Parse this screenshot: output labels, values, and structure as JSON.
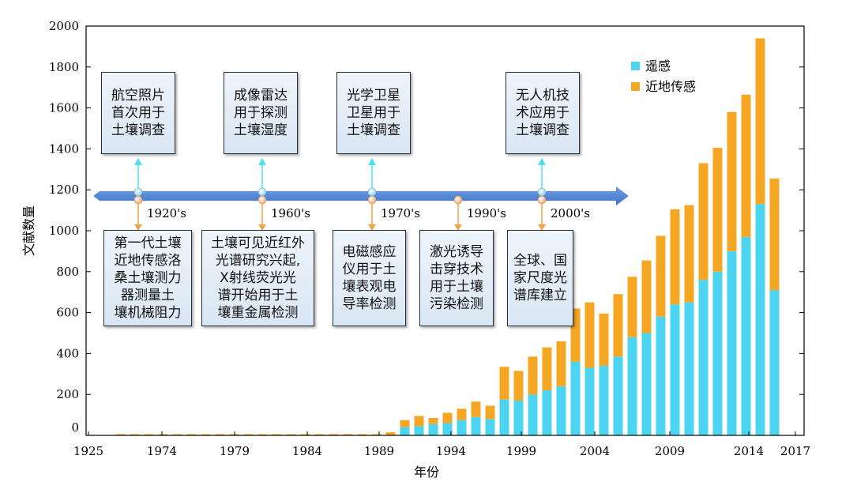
{
  "chart_data": {
    "type": "bar",
    "stacked": true,
    "xlabel": "年份",
    "ylabel": "文献数量",
    "ylim": [
      0,
      2000
    ],
    "yticks": [
      0,
      200,
      400,
      600,
      800,
      1000,
      1200,
      1400,
      1600,
      1800,
      2000
    ],
    "xtick_labels": [
      "1925",
      "1974",
      "1979",
      "1984",
      "1989",
      "1994",
      "1999",
      "2004",
      "2009",
      "2014",
      "2017"
    ],
    "legend_position": "top-right",
    "series": [
      {
        "name": "遥感",
        "color": "#4dd4f0",
        "values": [
          0,
          0,
          0,
          0,
          0,
          0,
          0,
          0,
          0,
          0,
          0,
          0,
          0,
          0,
          0,
          0,
          0,
          0,
          0,
          0,
          40,
          45,
          55,
          60,
          75,
          90,
          80,
          175,
          170,
          200,
          220,
          240,
          360,
          330,
          340,
          385,
          480,
          500,
          580,
          640,
          650,
          760,
          800,
          900,
          970,
          1130,
          710
        ]
      },
      {
        "name": "近地传感",
        "color": "#f5a623",
        "values": [
          2,
          2,
          2,
          2,
          2,
          2,
          2,
          2,
          2,
          5,
          2,
          2,
          2,
          2,
          4,
          3,
          3,
          2,
          2,
          15,
          35,
          50,
          30,
          50,
          55,
          75,
          65,
          160,
          145,
          185,
          210,
          220,
          260,
          320,
          255,
          305,
          295,
          355,
          395,
          465,
          475,
          570,
          605,
          680,
          695,
          810,
          545
        ]
      }
    ],
    "timeline": [
      {
        "year": "1920's",
        "above": "航空照片\n首次用于\n土壤调查",
        "below": "第一代土壤\n近地传感洛\n桑土壤测力\n器测量土\n壤机械阻力"
      },
      {
        "year": "1960's",
        "above": "成像雷达\n用于探测\n土壤湿度",
        "below": "土壤可见近红外\n光谱研究兴起,\nX射线荧光光\n谱开始用于土\n壤重金属检测"
      },
      {
        "year": "1970's",
        "above": "光学卫星\n卫星用于\n土壤调查",
        "below": "电磁感应\n仪用于土\n壤表观电\n导率检测"
      },
      {
        "year": "1990's",
        "above": "",
        "below": "激光诱导\n击穿技术\n用于土壤\n污染检测"
      },
      {
        "year": "2000's",
        "above": "无人机技\n术应用于\n土壤调查",
        "below": "全球、国\n家尺度光\n谱库建立"
      }
    ]
  }
}
